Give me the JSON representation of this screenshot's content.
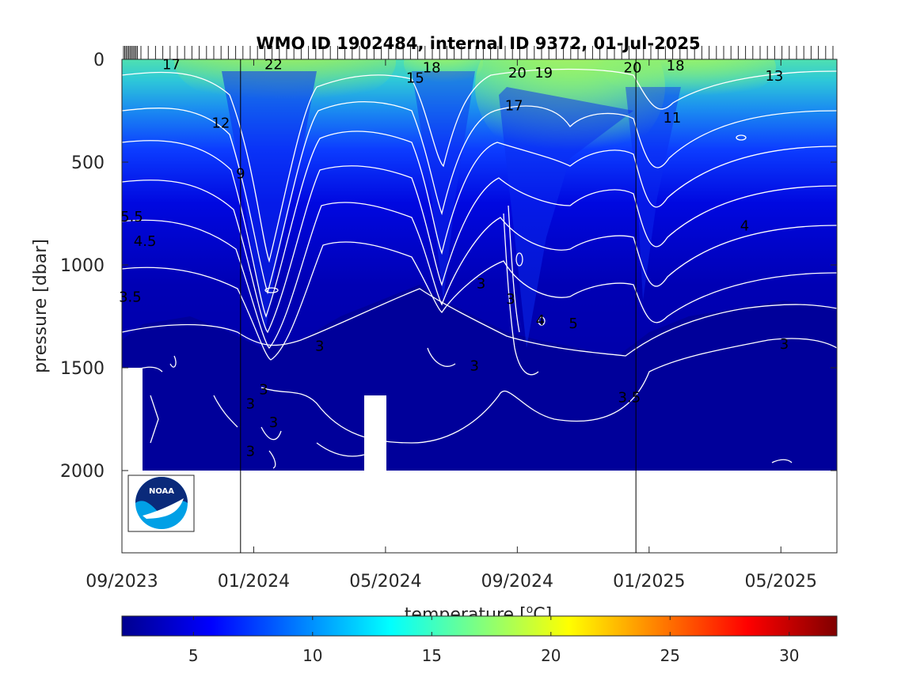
{
  "chart_data": {
    "type": "heatmap",
    "title": "WMO ID 1902484, internal ID 9372, 01-Jul-2025",
    "xlabel": "",
    "ylabel": "pressure [dbar]",
    "colorbar_label_prefix": "temperature [",
    "colorbar_label_unit": "C]",
    "colorbar_label_superscript": "o",
    "colormap": "jet",
    "colorbar_range": [
      2,
      32
    ],
    "colorbar_ticks": [
      "5",
      "10",
      "15",
      "20",
      "25",
      "30"
    ],
    "colorbar_tick_values": [
      5,
      10,
      15,
      20,
      25,
      30
    ],
    "x_tick_labels": [
      "09/2023",
      "01/2024",
      "05/2024",
      "09/2024",
      "01/2025",
      "05/2025"
    ],
    "y_tick_labels": [
      "0",
      "500",
      "1000",
      "1500",
      "2000"
    ],
    "y_tick_values": [
      0,
      500,
      1000,
      1500,
      2000
    ],
    "ylim": [
      0,
      2400
    ],
    "y_reversed": true,
    "x_range_months": [
      0,
      21.7
    ],
    "x_tick_months": [
      0,
      4,
      8,
      12,
      16,
      20
    ],
    "year_marker_months": [
      3.6,
      15.6
    ],
    "grid": false,
    "logo_text": "NOAA",
    "contour_labels": [
      {
        "text": "17",
        "month": 1.5,
        "p": 25
      },
      {
        "text": "22",
        "month": 4.6,
        "p": 25
      },
      {
        "text": "18",
        "month": 9.4,
        "p": 40
      },
      {
        "text": "15",
        "month": 8.9,
        "p": 90
      },
      {
        "text": "20",
        "month": 12.0,
        "p": 65
      },
      {
        "text": "19",
        "month": 12.8,
        "p": 65
      },
      {
        "text": "20",
        "month": 15.5,
        "p": 40
      },
      {
        "text": "18",
        "month": 16.8,
        "p": 30
      },
      {
        "text": "13",
        "month": 19.8,
        "p": 80
      },
      {
        "text": "17",
        "month": 11.9,
        "p": 225
      },
      {
        "text": "12",
        "month": 3.0,
        "p": 310
      },
      {
        "text": "11",
        "month": 16.7,
        "p": 285
      },
      {
        "text": "9",
        "month": 3.6,
        "p": 555
      },
      {
        "text": "5.5",
        "month": 0.3,
        "p": 765
      },
      {
        "text": "4.5",
        "month": 0.7,
        "p": 885
      },
      {
        "text": "3.5",
        "month": 0.25,
        "p": 1155
      },
      {
        "text": "3",
        "month": 10.9,
        "p": 1090
      },
      {
        "text": "3",
        "month": 11.8,
        "p": 1165
      },
      {
        "text": "4",
        "month": 12.7,
        "p": 1270
      },
      {
        "text": "5",
        "month": 13.7,
        "p": 1285
      },
      {
        "text": "3",
        "month": 6.0,
        "p": 1395
      },
      {
        "text": "3",
        "month": 10.7,
        "p": 1490
      },
      {
        "text": "3",
        "month": 4.3,
        "p": 1605
      },
      {
        "text": "3",
        "month": 3.9,
        "p": 1675
      },
      {
        "text": "3",
        "month": 4.6,
        "p": 1765
      },
      {
        "text": "3",
        "month": 3.9,
        "p": 1905
      },
      {
        "text": "3.5",
        "month": 15.4,
        "p": 1645
      },
      {
        "text": "4",
        "month": 18.9,
        "p": 810
      },
      {
        "text": "3",
        "month": 20.1,
        "p": 1385
      }
    ]
  }
}
